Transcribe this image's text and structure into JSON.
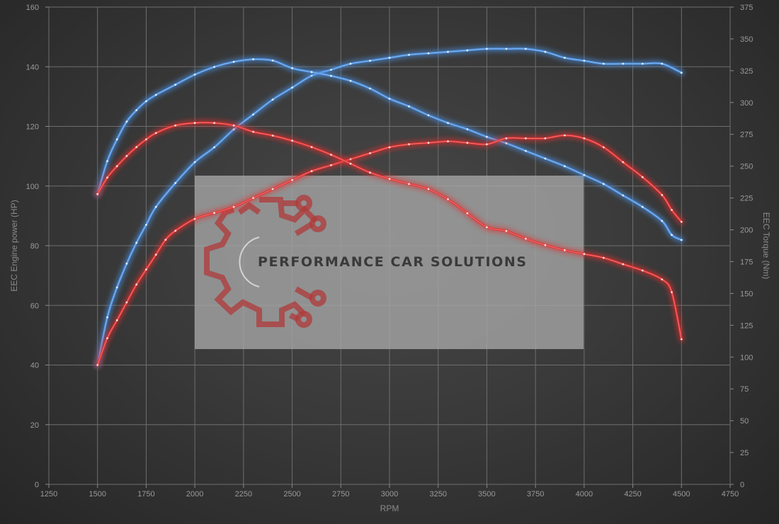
{
  "chart_data": {
    "type": "line",
    "xlabel": "RPM",
    "ylabel_left": "EEC Engine power (HP)",
    "ylabel_right": "EEC Torque (Nm)",
    "xlim": [
      1250,
      4750
    ],
    "ylim_left": [
      0,
      160
    ],
    "ylim_right": [
      0,
      375
    ],
    "x_ticks": [
      1250,
      1500,
      1750,
      2000,
      2250,
      2500,
      2750,
      3000,
      3250,
      3500,
      3750,
      4000,
      4250,
      4500,
      4750
    ],
    "y_ticks_left": [
      0,
      20,
      40,
      60,
      80,
      100,
      120,
      140,
      160
    ],
    "y_ticks_right": [
      0,
      25,
      50,
      75,
      100,
      125,
      150,
      175,
      200,
      225,
      250,
      275,
      300,
      325,
      350,
      375
    ],
    "grid": true,
    "legend": "none",
    "colors": {
      "tuned": "#4a8fe0",
      "stock": "#e03030"
    },
    "series": [
      {
        "axis": "left",
        "color": "#4a8fe0",
        "x": [
          1500,
          1550,
          1600,
          1650,
          1700,
          1750,
          1800,
          1900,
          2000,
          2100,
          2200,
          2300,
          2400,
          2500,
          2600,
          2700,
          2800,
          2900,
          3000,
          3100,
          3200,
          3300,
          3400,
          3500,
          3600,
          3700,
          3800,
          3900,
          4000,
          4100,
          4200,
          4300,
          4400,
          4500
        ],
        "values": [
          40,
          56,
          66,
          74,
          81,
          87,
          93,
          101,
          108,
          113,
          119,
          124,
          129,
          133,
          137,
          139,
          141,
          142,
          143,
          144,
          144.5,
          145,
          145.5,
          146,
          146,
          146,
          145,
          143,
          142,
          141,
          141,
          141,
          141,
          138
        ]
      },
      {
        "axis": "right",
        "color": "#4a8fe0",
        "x": [
          1500,
          1550,
          1600,
          1650,
          1700,
          1750,
          1800,
          1900,
          2000,
          2100,
          2200,
          2300,
          2400,
          2500,
          2600,
          2700,
          2800,
          2900,
          3000,
          3100,
          3200,
          3300,
          3400,
          3500,
          3600,
          3700,
          3800,
          3900,
          4000,
          4100,
          4200,
          4300,
          4400,
          4450,
          4500
        ],
        "values": [
          228,
          254,
          271,
          285,
          294,
          301,
          306,
          314,
          322,
          328,
          332,
          334,
          333,
          327,
          324,
          321,
          317,
          311,
          303,
          297,
          290,
          284,
          279,
          273,
          268,
          262,
          256,
          250,
          243,
          236,
          227,
          218,
          207,
          196,
          192
        ]
      },
      {
        "axis": "left",
        "color": "#e03030",
        "x": [
          1500,
          1550,
          1600,
          1650,
          1700,
          1750,
          1800,
          1850,
          1900,
          2000,
          2100,
          2200,
          2300,
          2400,
          2500,
          2600,
          2700,
          2800,
          2900,
          3000,
          3100,
          3200,
          3300,
          3400,
          3500,
          3600,
          3700,
          3800,
          3900,
          4000,
          4100,
          4200,
          4300,
          4400,
          4450,
          4500
        ],
        "values": [
          40,
          49,
          55,
          61,
          67,
          72,
          77,
          82,
          85,
          89,
          91,
          93,
          96,
          99,
          102,
          105,
          107,
          109,
          111,
          113,
          114,
          114.5,
          115,
          114.5,
          114,
          116,
          116,
          116,
          117,
          116,
          113,
          108,
          103,
          97,
          92,
          88
        ]
      },
      {
        "axis": "right",
        "color": "#e03030",
        "x": [
          1500,
          1550,
          1600,
          1650,
          1700,
          1750,
          1800,
          1900,
          2000,
          2100,
          2200,
          2300,
          2400,
          2500,
          2600,
          2700,
          2800,
          2900,
          3000,
          3100,
          3200,
          3300,
          3400,
          3500,
          3600,
          3700,
          3800,
          3900,
          4000,
          4100,
          4200,
          4300,
          4400,
          4450,
          4500
        ],
        "values": [
          228,
          241,
          250,
          258,
          265,
          271,
          276,
          282,
          284,
          284,
          282,
          277,
          274,
          270,
          265,
          259,
          252,
          245,
          240,
          236,
          232,
          224,
          213,
          202,
          199,
          193,
          188,
          184,
          181,
          178,
          173,
          168,
          161,
          151,
          114
        ]
      }
    ]
  },
  "watermark": {
    "text": "PERFORMANCE CAR SOLUTIONS",
    "logo_icon": "gear-circuit-logo-icon"
  }
}
